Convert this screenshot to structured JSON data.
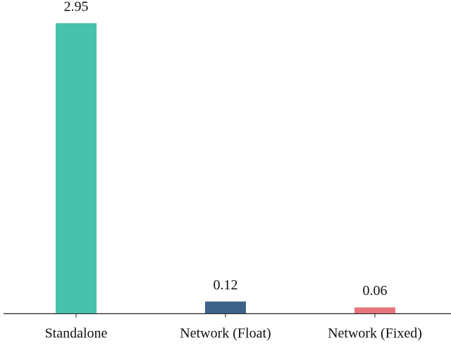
{
  "chart_data": {
    "type": "bar",
    "categories": [
      "Standalone",
      "Network (Float)",
      "Network (Fixed)"
    ],
    "values": [
      2.95,
      0.12,
      0.06
    ],
    "value_labels": [
      "2.95",
      "0.12",
      "0.06"
    ],
    "colors": [
      "#48c2aa",
      "#3e6389",
      "#e8757b"
    ]
  }
}
